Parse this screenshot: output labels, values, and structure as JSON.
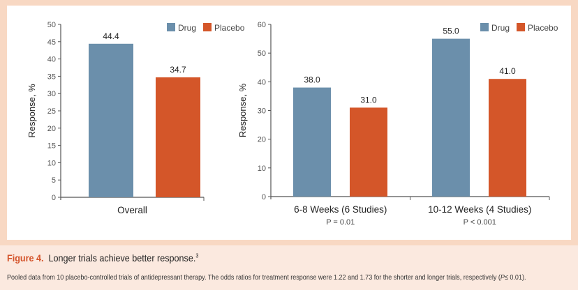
{
  "caption": {
    "figure_label": "Figure 4.",
    "title": "Longer trials achieve better response.",
    "superscript": "3",
    "note_pre": "Pooled data from 10 placebo-controlled trials of antidepressant therapy. The odds ratios for treatment response were 1.22 and 1.73 for the shorter and longer trials, respectively (",
    "note_p": "P",
    "note_post": "≤ 0.01)."
  },
  "chart_data": [
    {
      "type": "bar",
      "ylabel": "Response, %",
      "ylim": [
        0,
        50
      ],
      "yticks": [
        0,
        5,
        10,
        15,
        20,
        25,
        30,
        35,
        40,
        45,
        50
      ],
      "categories": [
        "Overall"
      ],
      "subtitles": [
        ""
      ],
      "series": [
        {
          "name": "Drug",
          "values": [
            44.4
          ],
          "color": "#6b8fab"
        },
        {
          "name": "Placebo",
          "values": [
            34.7
          ],
          "color": "#d45629"
        }
      ],
      "legend": "top-right",
      "grid": false
    },
    {
      "type": "bar",
      "ylabel": "Response, %",
      "ylim": [
        0,
        60
      ],
      "yticks": [
        0,
        10,
        20,
        30,
        40,
        50,
        60
      ],
      "categories": [
        "6-8 Weeks (6 Studies)",
        "10-12 Weeks (4 Studies)"
      ],
      "subtitles": [
        "P = 0.01",
        "P < 0.001"
      ],
      "series": [
        {
          "name": "Drug",
          "values": [
            38.0,
            55.0
          ],
          "color": "#6b8fab"
        },
        {
          "name": "Placebo",
          "values": [
            31.0,
            41.0
          ],
          "color": "#d45629"
        }
      ],
      "legend": "top-right",
      "grid": false
    }
  ]
}
